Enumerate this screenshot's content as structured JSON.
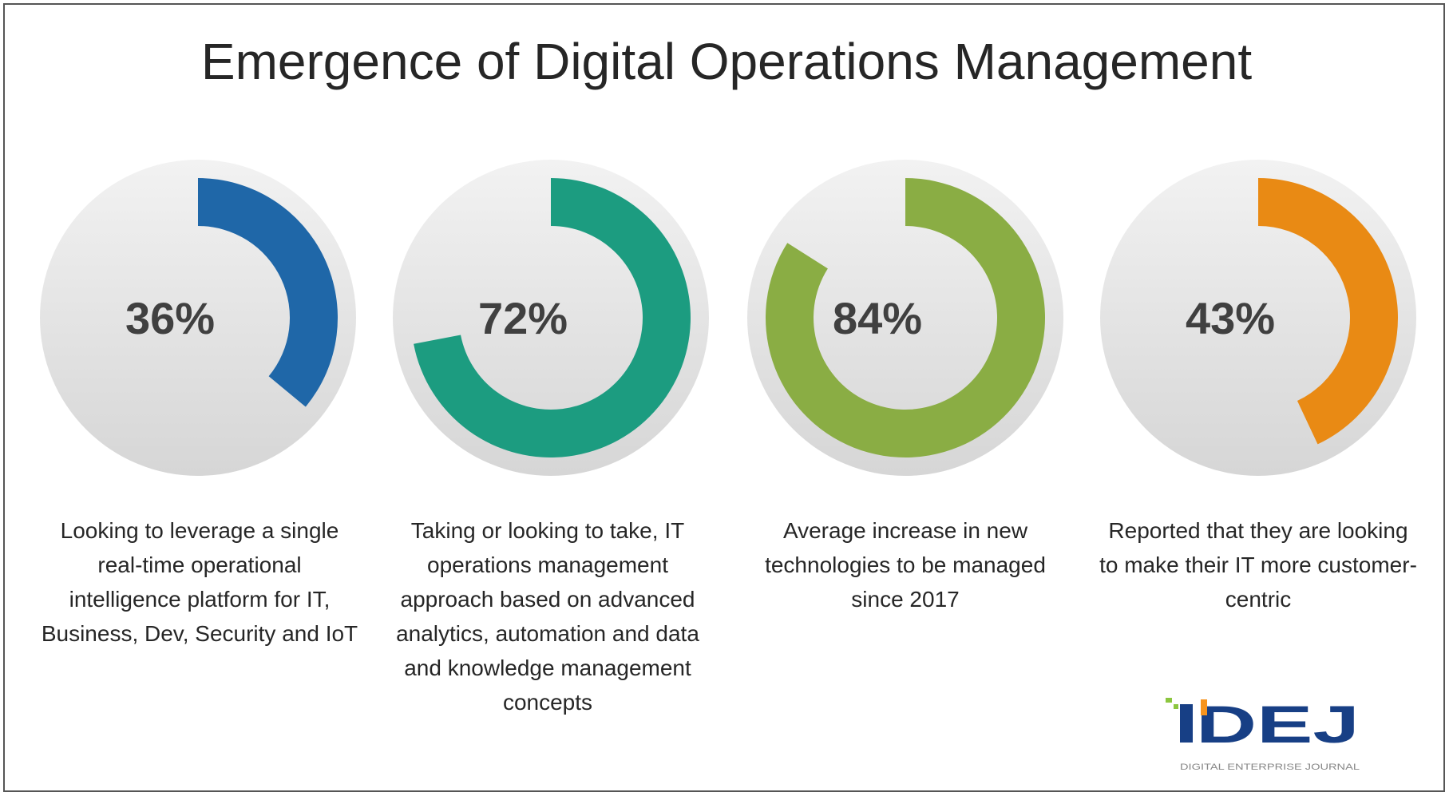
{
  "title": "Emergence of Digital Operations Management",
  "stats": [
    {
      "value": 36,
      "label": "36%",
      "color": "#1f67a8",
      "description": "Looking to leverage a single real-time operational intelligence platform for IT, Business, Dev, Security and IoT"
    },
    {
      "value": 72,
      "label": "72%",
      "color": "#1c9c80",
      "description": "Taking or looking to take, IT operations management approach based on advanced analytics, automation and data and knowledge management concepts"
    },
    {
      "value": 84,
      "label": "84%",
      "color": "#8aad44",
      "description": "Average increase in new technologies to be managed since 2017"
    },
    {
      "value": 43,
      "label": "43%",
      "color": "#e98a14",
      "description": "Reported that they are looking to make their IT more customer-centric"
    }
  ],
  "logo": {
    "text": "DEJ",
    "subtitle": "DIGITAL ENTERPRISE JOURNAL",
    "color": "#173f85"
  }
}
